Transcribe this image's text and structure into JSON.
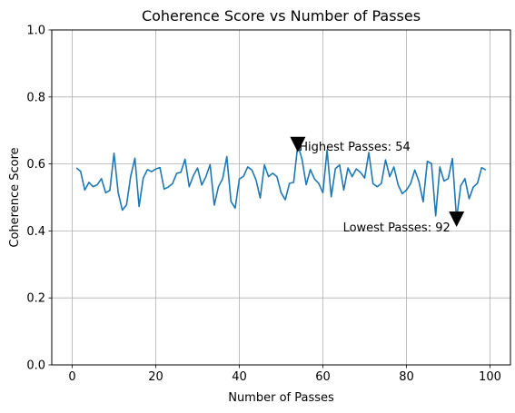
{
  "chart_data": {
    "type": "line",
    "title": "Coherence Score vs Number of Passes",
    "xlabel": "Number of Passes",
    "ylabel": "Coherence Score",
    "xlim": [
      -4.9,
      104.9
    ],
    "ylim": [
      0,
      1
    ],
    "xticks": [
      0,
      20,
      40,
      60,
      80,
      100
    ],
    "yticks": [
      0.0,
      0.2,
      0.4,
      0.6,
      0.8,
      1.0
    ],
    "xtick_labels": [
      "0",
      "20",
      "40",
      "60",
      "80",
      "100"
    ],
    "ytick_labels": [
      "0.0",
      "0.2",
      "0.4",
      "0.6",
      "0.8",
      "1.0"
    ],
    "grid": true,
    "line_color": "#1f77b4",
    "series": [
      {
        "x": [
          1,
          2,
          3,
          4,
          5,
          6,
          7,
          8,
          9,
          10,
          11,
          12,
          13,
          14,
          15,
          16,
          17,
          18,
          19,
          20,
          21,
          22,
          23,
          24,
          25,
          26,
          27,
          28,
          29,
          30,
          31,
          32,
          33,
          34,
          35,
          36,
          37,
          38,
          39,
          40,
          41,
          42,
          43,
          44,
          45,
          46,
          47,
          48,
          49,
          50,
          51,
          52,
          53,
          54,
          55,
          56,
          57,
          58,
          59,
          60,
          61,
          62,
          63,
          64,
          65,
          66,
          67,
          68,
          69,
          70,
          71,
          72,
          73,
          74,
          75,
          76,
          77,
          78,
          79,
          80,
          81,
          82,
          83,
          84,
          85,
          86,
          87,
          88,
          89,
          90,
          91,
          92,
          93,
          94,
          95,
          96,
          97,
          98,
          99
        ],
        "y": [
          0.588,
          0.578,
          0.522,
          0.545,
          0.532,
          0.538,
          0.556,
          0.514,
          0.521,
          0.632,
          0.514,
          0.462,
          0.478,
          0.564,
          0.617,
          0.473,
          0.558,
          0.583,
          0.577,
          0.585,
          0.589,
          0.525,
          0.531,
          0.541,
          0.572,
          0.575,
          0.614,
          0.532,
          0.565,
          0.588,
          0.537,
          0.562,
          0.598,
          0.477,
          0.532,
          0.556,
          0.622,
          0.488,
          0.468,
          0.555,
          0.563,
          0.591,
          0.582,
          0.552,
          0.498,
          0.597,
          0.562,
          0.572,
          0.562,
          0.514,
          0.493,
          0.542,
          0.545,
          0.658,
          0.614,
          0.538,
          0.583,
          0.555,
          0.542,
          0.514,
          0.641,
          0.502,
          0.586,
          0.597,
          0.522,
          0.588,
          0.562,
          0.585,
          0.575,
          0.558,
          0.634,
          0.541,
          0.532,
          0.542,
          0.612,
          0.562,
          0.591,
          0.538,
          0.511,
          0.522,
          0.541,
          0.582,
          0.547,
          0.487,
          0.608,
          0.601,
          0.445,
          0.591,
          0.549,
          0.556,
          0.616,
          0.435,
          0.535,
          0.556,
          0.496,
          0.531,
          0.542,
          0.589,
          0.582
        ]
      }
    ],
    "annotations": [
      {
        "text": "Highest Passes: 54",
        "marker_x": 54,
        "marker_y": 0.658,
        "text_x": 54.3,
        "text_y": 0.652,
        "marker": "down-triangle"
      },
      {
        "text": "Lowest Passes: 92",
        "marker_x": 92,
        "marker_y": 0.435,
        "text_x": 64.8,
        "text_y": 0.41,
        "marker": "down-triangle"
      }
    ]
  }
}
